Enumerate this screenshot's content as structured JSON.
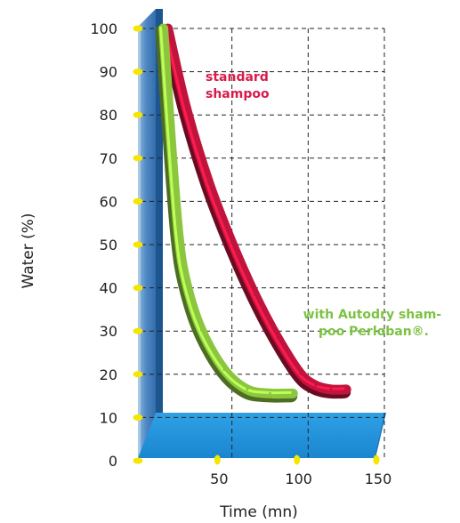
{
  "chart_data": {
    "type": "line",
    "title": "",
    "xlabel": "Time (mn)",
    "ylabel": "Water (%)",
    "xlim": [
      0,
      150
    ],
    "ylim": [
      0,
      100
    ],
    "x_ticks": [
      "50",
      "100",
      "150"
    ],
    "y_ticks": [
      "0",
      "10",
      "20",
      "30",
      "40",
      "50",
      "60",
      "70",
      "80",
      "90",
      "100"
    ],
    "grid": "dashed, at 50 / 100 / 150 and every 10%",
    "series": [
      {
        "name": "",
        "color": "#c0143c",
        "x": [
          8,
          20,
          35,
          50,
          65,
          80,
          95,
          105,
          115,
          125
        ],
        "y": [
          100,
          80,
          61,
          46,
          33,
          22,
          13,
          10,
          9,
          9
        ]
      },
      {
        "name": "",
        "color": "#8cc63f",
        "x": [
          5,
          10,
          15,
          20,
          30,
          45,
          60,
          75,
          90
        ],
        "y": [
          100,
          72,
          48,
          36,
          24,
          14,
          9,
          8,
          8
        ]
      }
    ],
    "annotations": [
      {
        "lines": [
          "standard",
          "shampoo"
        ],
        "color": "#d81b4a"
      },
      {
        "lines": [
          "with Autodry sham-",
          "poo Perloban®."
        ],
        "color": "#7cc242"
      }
    ],
    "colors": {
      "wall": "#2a6aaa",
      "floor": "#1e90d8",
      "tick_marker": "#f5e600"
    }
  }
}
